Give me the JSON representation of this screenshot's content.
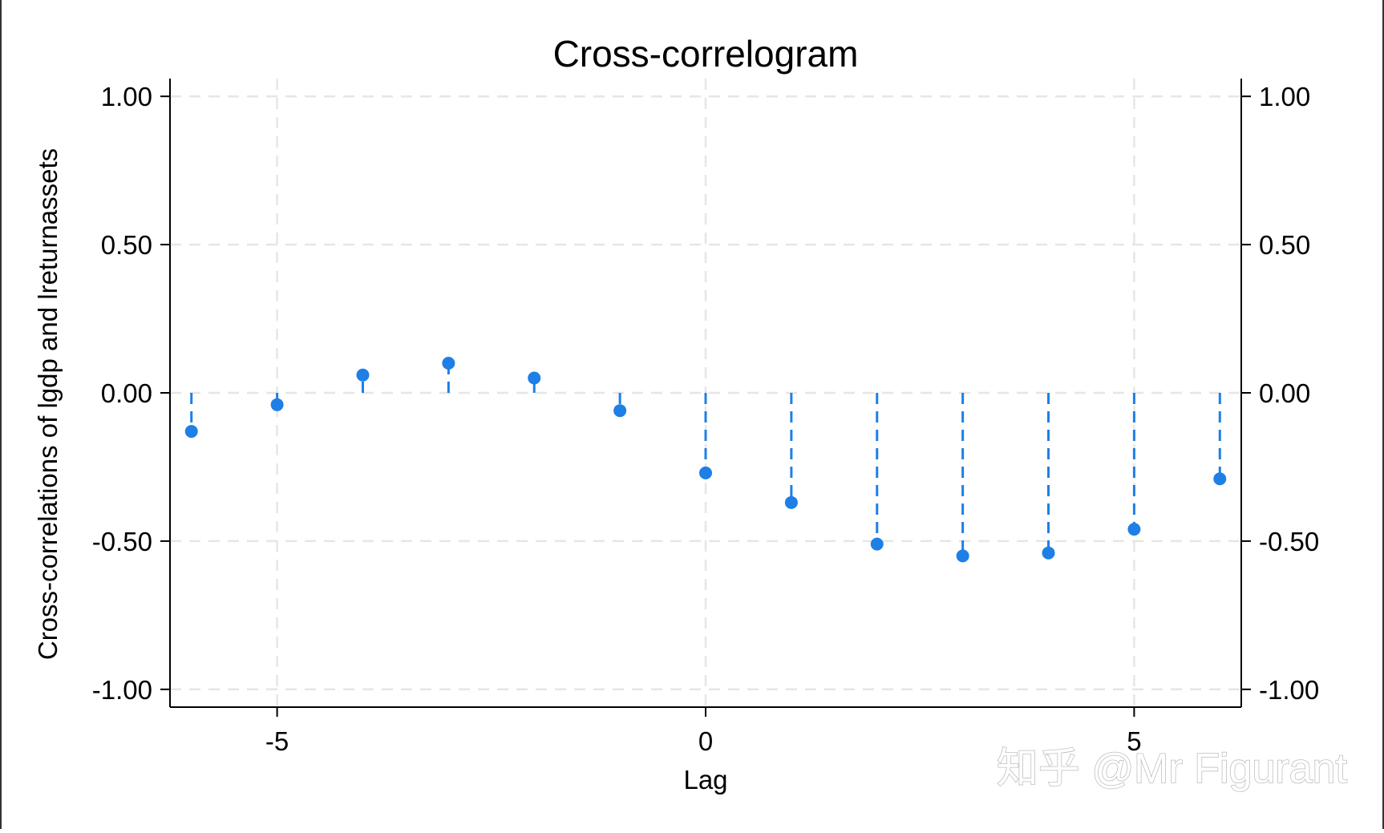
{
  "chart_data": {
    "type": "scatter",
    "style": "dropline-stem",
    "title": "Cross-correlogram",
    "xlabel": "Lag",
    "ylabel": "Cross-correlations of lgdp and lreturnassets",
    "xlim": [
      -6.25,
      6.25
    ],
    "ylim": [
      -1.06,
      1.06
    ],
    "x_ticks": [
      -5,
      0,
      5
    ],
    "x_tick_labels": [
      "-5",
      "0",
      "5"
    ],
    "y_ticks": [
      1,
      0.5,
      0,
      -0.5,
      -1
    ],
    "y_tick_labels": [
      "1.00",
      "0.50",
      "0.00",
      "-0.50",
      "-1.00"
    ],
    "y_axis_right_mirror": true,
    "grid": true,
    "grid_style": "dashed light gray",
    "series": [
      {
        "color": "#1e7fe6",
        "x": [
          -6,
          -5,
          -4,
          -3,
          -2,
          -1,
          0,
          1,
          2,
          3,
          4,
          5,
          6
        ],
        "y": [
          -0.13,
          -0.04,
          0.06,
          0.1,
          0.05,
          -0.06,
          -0.27,
          -0.37,
          -0.51,
          -0.55,
          -0.54,
          -0.46,
          -0.29
        ]
      }
    ]
  },
  "watermark": "知乎 @Mr Figurant"
}
